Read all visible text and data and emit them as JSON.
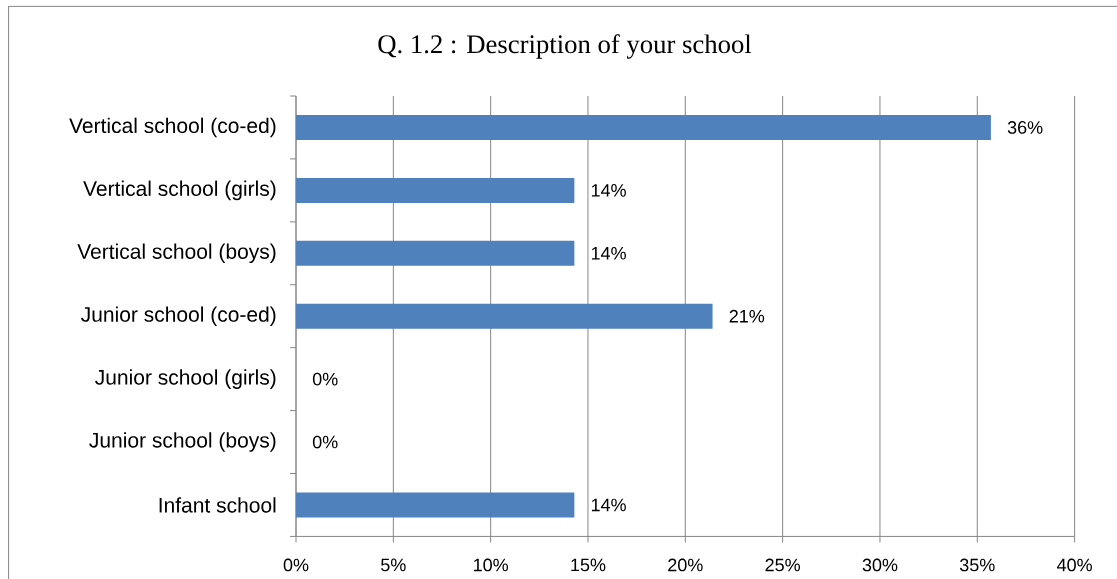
{
  "chart_data": {
    "type": "bar",
    "orientation": "horizontal",
    "title": "Q. 1.2  : Description of your school",
    "categories": [
      "Vertical school (co-ed)",
      "Vertical school (girls)",
      "Vertical school (boys)",
      "Junior school (co-ed)",
      "Junior school (girls)",
      "Junior school (boys)",
      "Infant school"
    ],
    "values": [
      35.7,
      14.3,
      14.3,
      21.4,
      0,
      0,
      14.3
    ],
    "value_labels": [
      "36%",
      "14%",
      "14%",
      "21%",
      "0%",
      "0%",
      "14%"
    ],
    "color": "#4f81bd",
    "xlim": [
      0,
      40
    ],
    "xticks": [
      {
        "value": 0,
        "label": "0%"
      },
      {
        "value": 5,
        "label": "5%"
      },
      {
        "value": 10,
        "label": "10%"
      },
      {
        "value": 15,
        "label": "15%"
      },
      {
        "value": 20,
        "label": "20%"
      },
      {
        "value": 25,
        "label": "25%"
      },
      {
        "value": 30,
        "label": "30%"
      },
      {
        "value": 35,
        "label": "35%"
      },
      {
        "value": 40,
        "label": "40%"
      }
    ],
    "grid": "x"
  }
}
